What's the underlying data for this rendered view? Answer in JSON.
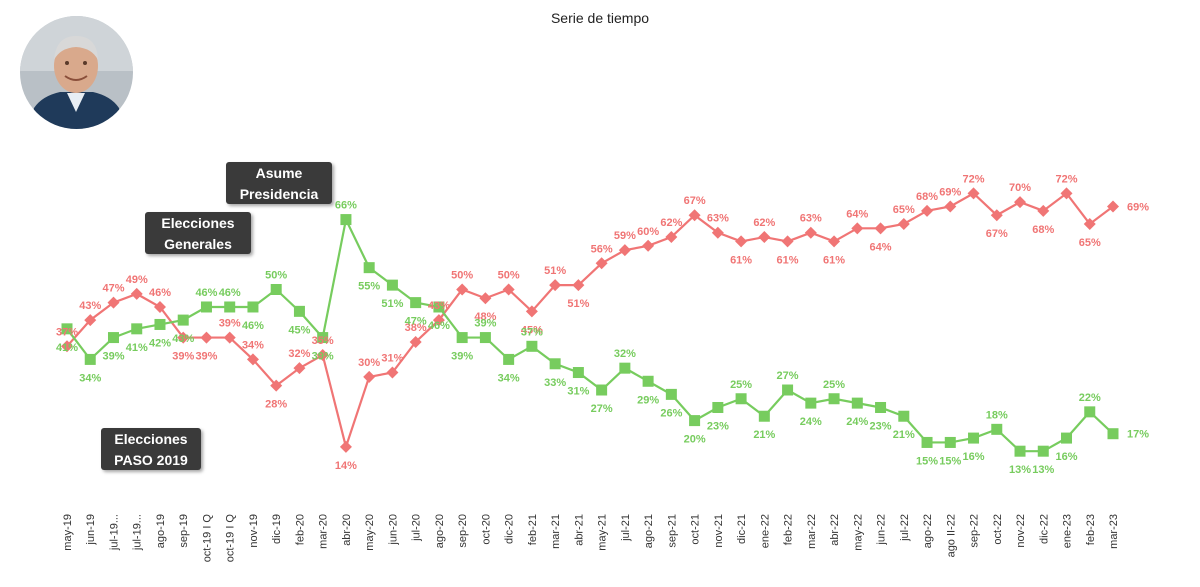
{
  "title": "Serie de tiempo",
  "avatar_icon": "person-photo-icon",
  "annotations": {
    "asume": [
      "Asume",
      "Presidencia"
    ],
    "generales": [
      "Elecciones",
      "Generales"
    ],
    "paso": [
      "Elecciones",
      "PASO 2019"
    ]
  },
  "colors": {
    "red": "#f07575",
    "green": "#77cc5e"
  },
  "chart_data": {
    "type": "line",
    "title": "Serie de tiempo",
    "xlabel": "",
    "ylabel": "",
    "ylim": [
      0,
      100
    ],
    "grid": false,
    "legend": "none",
    "categories": [
      "may-19",
      "jun-19",
      "jul-19...",
      "jul-19...",
      "ago-19",
      "sep-19",
      "oct-19 I Q",
      "oct-19 I Q",
      "nov-19",
      "dic-19",
      "feb-20",
      "mar-20",
      "abr-20",
      "may-20",
      "jun-20",
      "jul-20",
      "ago-20",
      "sep-20",
      "oct-20",
      "dic-20",
      "feb-21",
      "mar-21",
      "abr-21",
      "may-21",
      "jul-21",
      "ago-21",
      "sep-21",
      "oct-21",
      "nov-21",
      "dic-21",
      "ene-22",
      "feb-22",
      "mar-22",
      "abr-22",
      "may-22",
      "jun-22",
      "jul-22",
      "ago-22",
      "ago II-22",
      "sep-22",
      "oct-22",
      "nov-22",
      "dic-22",
      "ene-23",
      "feb-23",
      "mar-23"
    ],
    "series": [
      {
        "color": "#f07575",
        "marker": "diamond",
        "values": [
          37,
          43,
          47,
          49,
          46,
          39,
          39,
          39,
          34,
          28,
          32,
          35,
          14,
          30,
          31,
          38,
          43,
          50,
          48,
          50,
          45,
          51,
          51,
          56,
          59,
          60,
          62,
          67,
          63,
          61,
          62,
          61,
          63,
          61,
          64,
          64,
          65,
          68,
          69,
          72,
          67,
          70,
          68,
          72,
          65,
          69
        ],
        "labels": [
          "37%",
          "43%",
          "47%",
          "49%",
          "46%",
          "39%",
          "39%",
          "39%",
          "34%",
          "28%",
          "32%",
          "35%",
          "14%",
          "30%",
          "31%",
          "38%",
          "43%",
          "50%",
          "48%",
          "50%",
          "45%",
          "51%",
          "51%",
          "56%",
          "59%",
          "60%",
          "62%",
          "67%",
          "63%",
          "61%",
          "62%",
          "61%",
          "63%",
          "61%",
          "64%",
          "64%",
          "65%",
          "68%",
          "69%",
          "72%",
          "67%",
          "70%",
          "68%",
          "72%",
          "65%",
          "69%"
        ]
      },
      {
        "color": "#77cc5e",
        "marker": "square",
        "values": [
          41,
          34,
          39,
          41,
          42,
          43,
          46,
          46,
          46,
          50,
          45,
          39,
          66,
          55,
          51,
          47,
          46,
          39,
          39,
          34,
          37,
          33,
          31,
          27,
          32,
          29,
          26,
          20,
          23,
          25,
          21,
          27,
          24,
          25,
          24,
          23,
          21,
          15,
          15,
          16,
          18,
          13,
          13,
          16,
          22,
          17
        ],
        "labels": [
          "41%",
          "34%",
          "39%",
          "41%",
          "42%",
          "43%",
          "46%",
          "46%",
          "46%",
          "50%",
          "45%",
          "39%",
          "66%",
          "55%",
          "51%",
          "47%",
          "46%",
          "39%",
          "39%",
          "34%",
          "37%",
          "33%",
          "31%",
          "27%",
          "32%",
          "29%",
          "26%",
          "20%",
          "23%",
          "25%",
          "21%",
          "27%",
          "24%",
          "25%",
          "24%",
          "23%",
          "21%",
          "15%",
          "15%",
          "16%",
          "18%",
          "13%",
          "13%",
          "16%",
          "22%",
          "17%"
        ]
      }
    ]
  }
}
